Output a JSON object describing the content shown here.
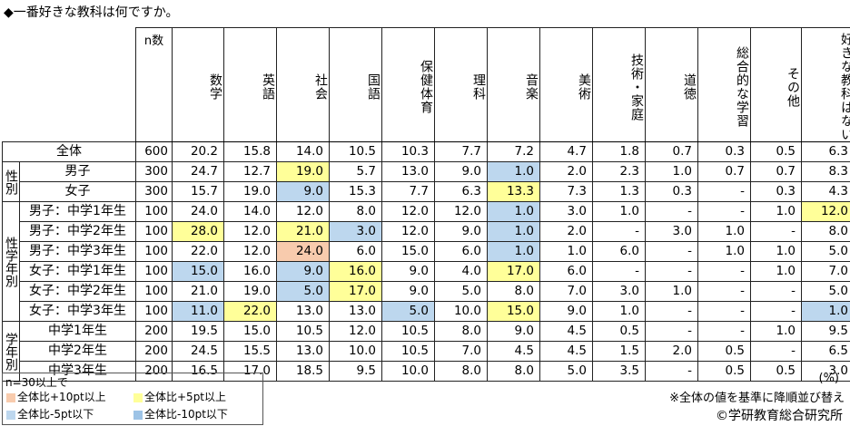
{
  "title": "◆一番好きな教科は何ですか。",
  "n_header": "n数",
  "colors": {
    "plus10": "#f8cbad",
    "plus5": "#ffff99",
    "minus5": "#bdd7ee",
    "minus10": "#9dc3e6"
  },
  "columns": [
    "数学",
    "英語",
    "社会",
    "国語",
    "保健体育",
    "理科",
    "音楽",
    "美術",
    "技術・家庭",
    "道徳",
    "総合的な学習",
    "その他",
    "好きな教科はない"
  ],
  "groups": {
    "sex": "性別",
    "sexgrade": "性学年別",
    "grade": "学年別"
  },
  "legend": {
    "title": "n=30以上で",
    "plus10": "全体比+10pt以上",
    "plus5": "全体比+5pt以上",
    "minus5": "全体比-5pt以下",
    "minus10": "全体比-10pt以下"
  },
  "unit": "(%)",
  "note": "※全体の値を基準に降順並び替え",
  "credit": "©学研教育総合研究所",
  "chart_data": {
    "type": "table",
    "title": "◆一番好きな教科は何ですか。",
    "columns": [
      "数学",
      "英語",
      "社会",
      "国語",
      "保健体育",
      "理科",
      "音楽",
      "美術",
      "技術・家庭",
      "道徳",
      "総合的な学習",
      "その他",
      "好きな教科はない"
    ],
    "rows": [
      {
        "label": "全体",
        "n": "600",
        "values": [
          "20.2",
          "15.8",
          "14.0",
          "10.5",
          "10.3",
          "7.7",
          "7.2",
          "4.7",
          "1.8",
          "0.7",
          "0.3",
          "0.5",
          "6.3"
        ],
        "hl": [
          "",
          "",
          "",
          "",
          "",
          "",
          "",
          "",
          "",
          "",
          "",
          "",
          ""
        ]
      },
      {
        "label": "男子",
        "n": "300",
        "values": [
          "24.7",
          "12.7",
          "19.0",
          "5.7",
          "13.0",
          "9.0",
          "1.0",
          "2.0",
          "2.3",
          "1.0",
          "0.7",
          "0.7",
          "8.3"
        ],
        "hl": [
          "",
          "",
          "p5",
          "",
          "",
          "",
          "m5",
          "",
          "",
          "",
          "",
          "",
          ""
        ]
      },
      {
        "label": "女子",
        "n": "300",
        "values": [
          "15.7",
          "19.0",
          "9.0",
          "15.3",
          "7.7",
          "6.3",
          "13.3",
          "7.3",
          "1.3",
          "0.3",
          "-",
          "0.3",
          "4.3"
        ],
        "hl": [
          "",
          "",
          "m5",
          "",
          "",
          "",
          "p5",
          "",
          "",
          "",
          "",
          "",
          ""
        ]
      },
      {
        "label": "男子：中学1年生",
        "n": "100",
        "values": [
          "24.0",
          "14.0",
          "12.0",
          "8.0",
          "12.0",
          "12.0",
          "1.0",
          "3.0",
          "1.0",
          "-",
          "-",
          "1.0",
          "12.0"
        ],
        "hl": [
          "",
          "",
          "",
          "",
          "",
          "",
          "m5",
          "",
          "",
          "",
          "",
          "",
          "p5"
        ]
      },
      {
        "label": "男子：中学2年生",
        "n": "100",
        "values": [
          "28.0",
          "12.0",
          "21.0",
          "3.0",
          "12.0",
          "9.0",
          "1.0",
          "2.0",
          "-",
          "3.0",
          "1.0",
          "-",
          "8.0"
        ],
        "hl": [
          "p5",
          "",
          "p5",
          "m5",
          "",
          "",
          "m5",
          "",
          "",
          "",
          "",
          "",
          ""
        ]
      },
      {
        "label": "男子：中学3年生",
        "n": "100",
        "values": [
          "22.0",
          "12.0",
          "24.0",
          "6.0",
          "15.0",
          "6.0",
          "1.0",
          "1.0",
          "6.0",
          "-",
          "1.0",
          "1.0",
          "5.0"
        ],
        "hl": [
          "",
          "",
          "p10",
          "",
          "",
          "",
          "m5",
          "",
          "",
          "",
          "",
          "",
          ""
        ]
      },
      {
        "label": "女子：中学1年生",
        "n": "100",
        "values": [
          "15.0",
          "16.0",
          "9.0",
          "16.0",
          "9.0",
          "4.0",
          "17.0",
          "6.0",
          "-",
          "-",
          "-",
          "1.0",
          "7.0"
        ],
        "hl": [
          "m5",
          "",
          "m5",
          "p5",
          "",
          "",
          "p5",
          "",
          "",
          "",
          "",
          "",
          ""
        ]
      },
      {
        "label": "女子：中学2年生",
        "n": "100",
        "values": [
          "21.0",
          "19.0",
          "5.0",
          "17.0",
          "9.0",
          "5.0",
          "8.0",
          "7.0",
          "3.0",
          "1.0",
          "-",
          "-",
          "5.0"
        ],
        "hl": [
          "",
          "",
          "m5",
          "p5",
          "",
          "",
          "",
          "",
          "",
          "",
          "",
          "",
          ""
        ]
      },
      {
        "label": "女子：中学3年生",
        "n": "100",
        "values": [
          "11.0",
          "22.0",
          "13.0",
          "13.0",
          "5.0",
          "10.0",
          "15.0",
          "9.0",
          "1.0",
          "-",
          "-",
          "-",
          "1.0"
        ],
        "hl": [
          "m5",
          "p5",
          "",
          "",
          "m5",
          "",
          "p5",
          "",
          "",
          "",
          "",
          "",
          "m5"
        ]
      },
      {
        "label": "中学1年生",
        "n": "200",
        "values": [
          "19.5",
          "15.0",
          "10.5",
          "12.0",
          "10.5",
          "8.0",
          "9.0",
          "4.5",
          "0.5",
          "-",
          "-",
          "1.0",
          "9.5"
        ],
        "hl": [
          "",
          "",
          "",
          "",
          "",
          "",
          "",
          "",
          "",
          "",
          "",
          "",
          ""
        ]
      },
      {
        "label": "中学2年生",
        "n": "200",
        "values": [
          "24.5",
          "15.5",
          "13.0",
          "10.0",
          "10.5",
          "7.0",
          "4.5",
          "4.5",
          "1.5",
          "2.0",
          "0.5",
          "-",
          "6.5"
        ],
        "hl": [
          "",
          "",
          "",
          "",
          "",
          "",
          "",
          "",
          "",
          "",
          "",
          "",
          ""
        ]
      },
      {
        "label": "中学3年生",
        "n": "200",
        "values": [
          "16.5",
          "17.0",
          "18.5",
          "9.5",
          "10.0",
          "8.0",
          "8.0",
          "5.0",
          "3.5",
          "-",
          "0.5",
          "0.5",
          "3.0"
        ],
        "hl": [
          "",
          "",
          "",
          "",
          "",
          "",
          "",
          "",
          "",
          "",
          "",
          "",
          ""
        ]
      }
    ]
  }
}
